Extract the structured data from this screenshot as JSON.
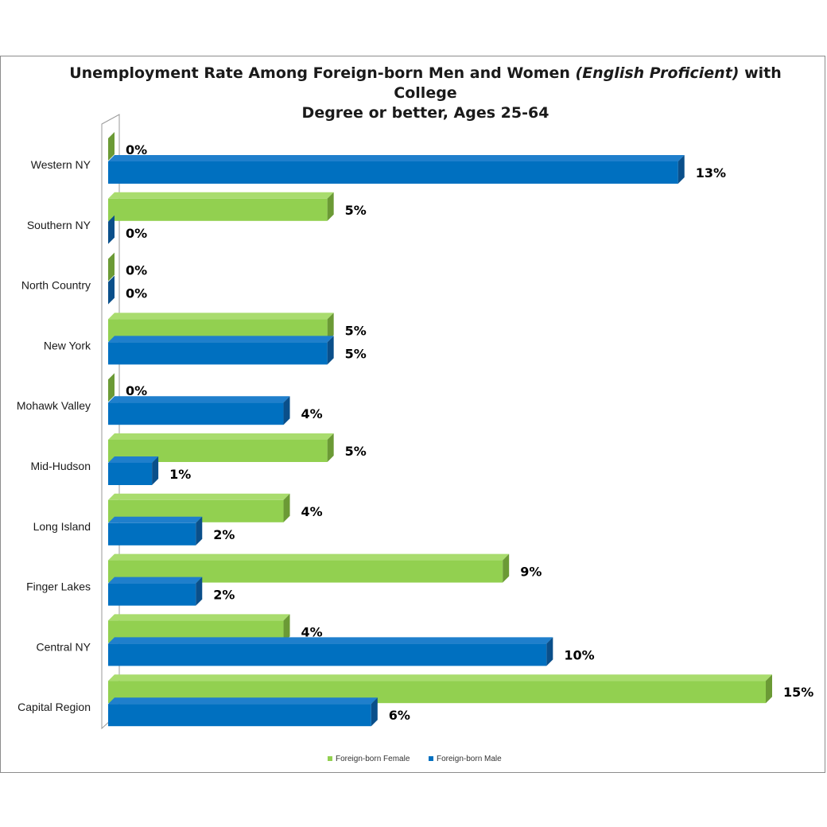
{
  "chart_data": {
    "type": "bar",
    "orientation": "horizontal",
    "style": "3d",
    "title_parts": [
      {
        "text": "Unemployment Rate Among Foreign-born Men and Women ",
        "italic": false
      },
      {
        "text": "(English Proficient)",
        "italic": true
      },
      {
        "text": " with College",
        "italic": false
      }
    ],
    "title_line2": "Degree or better, Ages 25-64",
    "categories": [
      "Western NY",
      "Southern NY",
      "North Country",
      "New York",
      "Mohawk Valley",
      "Mid-Hudson",
      "Long Island",
      "Finger Lakes",
      "Central NY",
      "Capital Region"
    ],
    "series": [
      {
        "name": "Foreign-born Female",
        "color": "#92d050",
        "values": [
          0,
          5,
          0,
          5,
          0,
          5,
          4,
          9,
          4,
          15
        ],
        "labels": [
          "0%",
          "5%",
          "0%",
          "5%",
          "0%",
          "5%",
          "4%",
          "9%",
          "4%",
          "15%"
        ]
      },
      {
        "name": "Foreign-born Male",
        "color": "#0070c0",
        "values": [
          13,
          0,
          0,
          5,
          4,
          1,
          2,
          2,
          10,
          6
        ],
        "labels": [
          "13%",
          "0%",
          "0%",
          "5%",
          "4%",
          "1%",
          "2%",
          "2%",
          "10%",
          "6%"
        ]
      }
    ],
    "xlim": [
      0,
      15
    ],
    "gridlines": false,
    "legend_position": "bottom"
  }
}
